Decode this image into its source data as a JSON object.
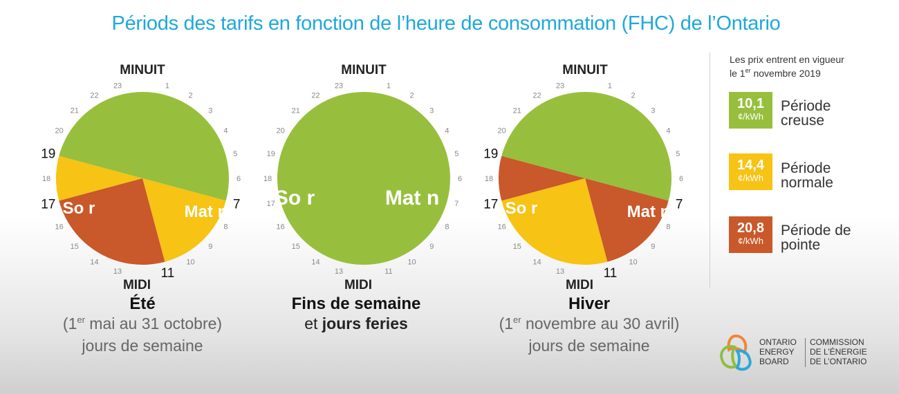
{
  "title": "Périods des tarifs en fonction de l’heure de consommation (FHC) de l’Ontario",
  "colors": {
    "creuse": "#97bf3d",
    "normale": "#f7c314",
    "pointe": "#c9582a"
  },
  "clock_labels": {
    "top": "MINUIT",
    "bottom": "MIDI"
  },
  "clocks": [
    {
      "segments": [
        {
          "from": 19,
          "to": 7,
          "period": "creuse"
        },
        {
          "from": 7,
          "to": 11,
          "period": "normale"
        },
        {
          "from": 11,
          "to": 17,
          "period": "pointe"
        },
        {
          "from": 17,
          "to": 19,
          "period": "normale"
        }
      ],
      "labels": {
        "morning": "Mat n",
        "evening": "So r"
      },
      "big_hours": [
        "19",
        "17",
        "7",
        "11"
      ],
      "caption": {
        "bold": "Été",
        "line2_open": "(1",
        "line2_sup": "er",
        "line2_rest": " mai au 31 octobre)",
        "line3": "jours de semaine"
      }
    },
    {
      "segments": [
        {
          "from": 0,
          "to": 24,
          "period": "creuse"
        }
      ],
      "labels": {
        "morning": "Mat n",
        "evening": "So r"
      },
      "big_hours": [],
      "caption": {
        "line1": "Fins de semaine",
        "line2_pre": "et ",
        "line2_bold": "jours feries"
      }
    },
    {
      "segments": [
        {
          "from": 19,
          "to": 7,
          "period": "creuse"
        },
        {
          "from": 7,
          "to": 11,
          "period": "pointe"
        },
        {
          "from": 11,
          "to": 17,
          "period": "normale"
        },
        {
          "from": 17,
          "to": 19,
          "period": "pointe"
        }
      ],
      "labels": {
        "morning": "Mat n",
        "evening": "So r"
      },
      "big_hours": [
        "19",
        "17",
        "7",
        "11"
      ],
      "caption": {
        "bold": "Hiver",
        "line2_open": "(1",
        "line2_sup": "er",
        "line2_rest": " novembre au 30 avril)",
        "line3": "jours de semaine"
      }
    }
  ],
  "legend": {
    "intro_line1": "Les prix entrent en vigueur",
    "intro_line2_pre": "le 1",
    "intro_line2_sup": "er",
    "intro_line2_post": " novembre 2019",
    "items": [
      {
        "price": "10,1",
        "unit": "¢/kWh",
        "label_line1": "Période",
        "label_line2": "creuse",
        "period": "creuse"
      },
      {
        "price": "14,4",
        "unit": "¢/kWh",
        "label_line1": "Période",
        "label_line2": "normale",
        "period": "normale"
      },
      {
        "price": "20,8",
        "unit": "¢/kWh",
        "label_line1": "Période de",
        "label_line2": "pointe",
        "period": "pointe"
      }
    ]
  },
  "logo": {
    "en_line1": "ONTARIO",
    "en_line2": "ENERGY",
    "en_line3": "BOARD",
    "fr_line1": "COMMISSION",
    "fr_line2": "DE L’ÉNERGIE",
    "fr_line3": "DE L’ONTARIO"
  }
}
